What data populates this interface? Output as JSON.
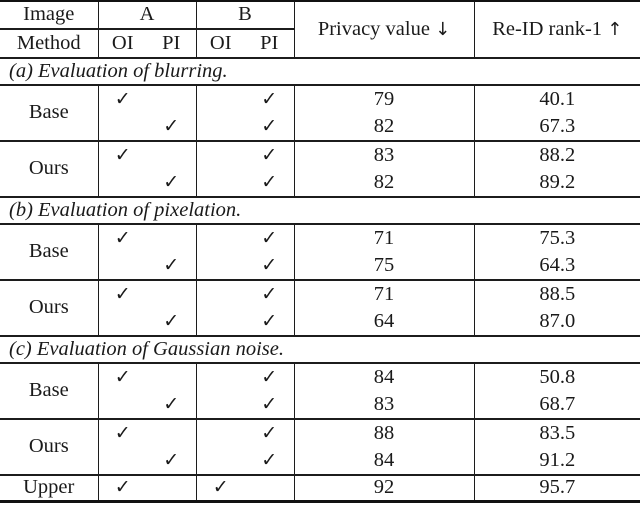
{
  "colors": {
    "background": "#ffffff",
    "text": "#1a1a1a",
    "line": "#1c1c1c"
  },
  "check_mark": "✓",
  "header": {
    "image": "Image",
    "method": "Method",
    "group_a": "A",
    "group_b": "B",
    "oi": "OI",
    "pi": "PI",
    "privacy_label": "Privacy value",
    "privacy_arrow": "↓",
    "reid_label": "Re-ID rank-1",
    "reid_arrow": "↑"
  },
  "sections": [
    {
      "caption": "(a) Evaluation of blurring.",
      "groups": [
        {
          "method": "Base",
          "rows": [
            {
              "c": [
                "✓",
                "",
                "",
                "✓"
              ],
              "privacy": "79",
              "reid": "40.1"
            },
            {
              "c": [
                "",
                "✓",
                "",
                "✓"
              ],
              "privacy": "82",
              "reid": "67.3"
            }
          ]
        },
        {
          "method": "Ours",
          "rows": [
            {
              "c": [
                "✓",
                "",
                "",
                "✓"
              ],
              "privacy": "83",
              "reid": "88.2"
            },
            {
              "c": [
                "",
                "✓",
                "",
                "✓"
              ],
              "privacy": "82",
              "reid": "89.2"
            }
          ]
        }
      ]
    },
    {
      "caption": "(b) Evaluation of pixelation.",
      "groups": [
        {
          "method": "Base",
          "rows": [
            {
              "c": [
                "✓",
                "",
                "",
                "✓"
              ],
              "privacy": "71",
              "reid": "75.3"
            },
            {
              "c": [
                "",
                "✓",
                "",
                "✓"
              ],
              "privacy": "75",
              "reid": "64.3"
            }
          ]
        },
        {
          "method": "Ours",
          "rows": [
            {
              "c": [
                "✓",
                "",
                "",
                "✓"
              ],
              "privacy": "71",
              "reid": "88.5"
            },
            {
              "c": [
                "",
                "✓",
                "",
                "✓"
              ],
              "privacy": "64",
              "reid": "87.0"
            }
          ]
        }
      ]
    },
    {
      "caption": "(c) Evaluation of Gaussian noise.",
      "groups": [
        {
          "method": "Base",
          "rows": [
            {
              "c": [
                "✓",
                "",
                "",
                "✓"
              ],
              "privacy": "84",
              "reid": "50.8"
            },
            {
              "c": [
                "",
                "✓",
                "",
                "✓"
              ],
              "privacy": "83",
              "reid": "68.7"
            }
          ]
        },
        {
          "method": "Ours",
          "rows": [
            {
              "c": [
                "✓",
                "",
                "",
                "✓"
              ],
              "privacy": "88",
              "reid": "83.5"
            },
            {
              "c": [
                "",
                "✓",
                "",
                "✓"
              ],
              "privacy": "84",
              "reid": "91.2"
            }
          ]
        }
      ]
    }
  ],
  "upper": {
    "method": "Upper",
    "c": [
      "✓",
      "",
      "✓",
      ""
    ],
    "privacy": "92",
    "reid": "95.7"
  }
}
